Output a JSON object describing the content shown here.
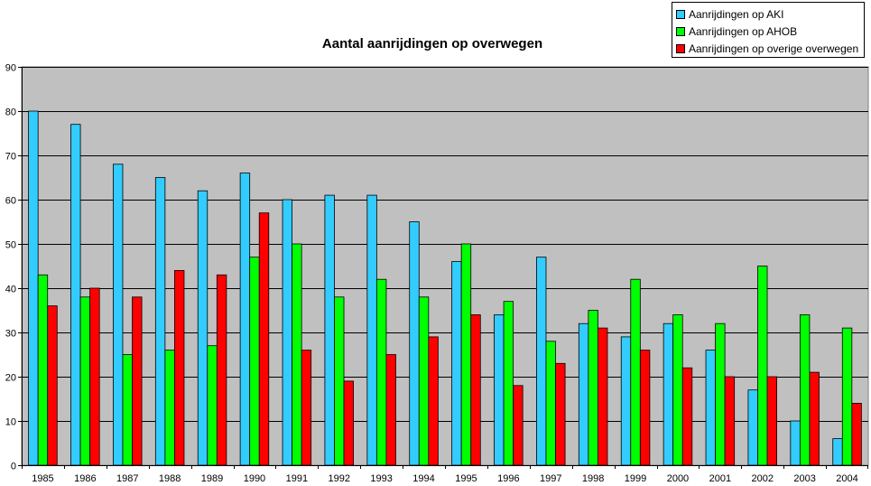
{
  "chart_data": {
    "type": "bar",
    "title": "Aantal aanrijdingen op overwegen",
    "xlabel": "",
    "ylabel": "",
    "ylim": [
      0,
      90
    ],
    "yticks": [
      0,
      10,
      20,
      30,
      40,
      50,
      60,
      70,
      80,
      90
    ],
    "grid": true,
    "legend_position": "top-right",
    "plot_background": "#c0c0c0",
    "categories": [
      "1985",
      "1986",
      "1987",
      "1988",
      "1989",
      "1990",
      "1991",
      "1992",
      "1993",
      "1994",
      "1995",
      "1996",
      "1997",
      "1998",
      "1999",
      "2000",
      "2001",
      "2002",
      "2003",
      "2004"
    ],
    "series": [
      {
        "name": "Aanrijdingen op AKI",
        "color": "#33ccff",
        "values": [
          80,
          77,
          68,
          65,
          62,
          66,
          60,
          61,
          61,
          55,
          46,
          34,
          47,
          32,
          29,
          32,
          26,
          17,
          10,
          6
        ]
      },
      {
        "name": "Aanrijdingen op AHOB",
        "color": "#00ff00",
        "values": [
          43,
          38,
          25,
          26,
          27,
          47,
          50,
          38,
          42,
          38,
          50,
          37,
          28,
          35,
          42,
          34,
          32,
          45,
          34,
          31
        ]
      },
      {
        "name": "Aanrijdingen op overige overwegen",
        "color": "#ff0000",
        "values": [
          36,
          40,
          38,
          44,
          43,
          57,
          26,
          19,
          25,
          29,
          34,
          18,
          23,
          31,
          26,
          22,
          20,
          20,
          21,
          14
        ]
      }
    ]
  }
}
